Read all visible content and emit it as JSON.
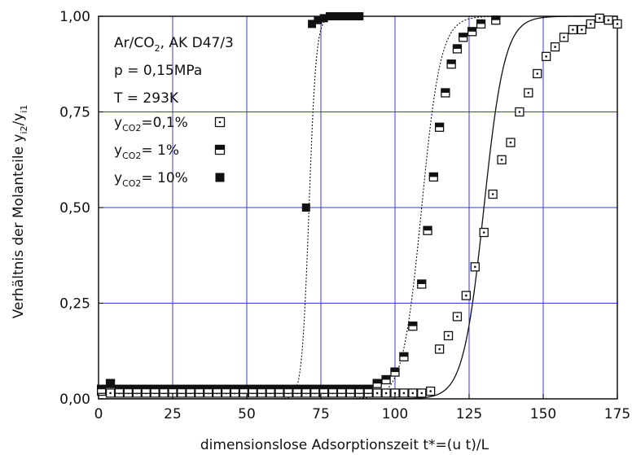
{
  "chart_data": {
    "type": "scatter",
    "xlabel": "dimensionslose Adsorptionszeit t*=(u t)/L",
    "ylabel": "Verhältnis der Molanteile y",
    "ylabel_sub1": "i2",
    "ylabel_mid": "/y",
    "ylabel_sub2": "i1",
    "xlim": [
      0,
      175
    ],
    "ylim": [
      0,
      1
    ],
    "xticks": [
      0,
      25,
      50,
      75,
      100,
      125,
      150,
      175
    ],
    "xtick_labels": [
      "0",
      "25",
      "50",
      "75",
      "100",
      "125",
      "150",
      "175"
    ],
    "yticks": [
      0,
      0.25,
      0.5,
      0.75,
      1.0
    ],
    "ytick_labels": [
      "0,00",
      "0,25",
      "0,50",
      "0,75",
      "1,00"
    ],
    "grid": true,
    "grid_color": "#3a3adf",
    "info": {
      "line1_a": "Ar/CO",
      "line1_sub": "2",
      "line1_b": ", AK D47/3",
      "line2": "p = 0,15MPa",
      "line3": "T = 293K"
    },
    "legend": [
      {
        "prefix": "y",
        "sub": "CO2",
        "text": "=0,1%",
        "marker": "dotted-square"
      },
      {
        "prefix": "y",
        "sub": "CO2",
        "text": "=   1%",
        "marker": "half-filled-square"
      },
      {
        "prefix": "y",
        "sub": "CO2",
        "text": "= 10%",
        "marker": "filled-square"
      }
    ],
    "series": [
      {
        "marker": "dotted-square",
        "x": [
          1,
          4,
          7,
          10,
          13,
          16,
          19,
          22,
          25,
          28,
          31,
          34,
          37,
          40,
          43,
          46,
          49,
          52,
          55,
          58,
          61,
          64,
          67,
          70,
          73,
          76,
          79,
          82,
          85,
          88,
          91,
          94,
          97,
          100,
          103,
          106,
          109,
          112,
          115,
          118,
          121,
          124,
          127,
          130,
          133,
          136,
          139,
          142,
          145,
          148,
          151,
          154,
          157,
          160,
          163,
          166,
          169,
          172,
          175
        ],
        "y": [
          0.02,
          0.015,
          0.015,
          0.015,
          0.015,
          0.015,
          0.015,
          0.015,
          0.015,
          0.015,
          0.015,
          0.015,
          0.015,
          0.015,
          0.015,
          0.015,
          0.015,
          0.015,
          0.015,
          0.015,
          0.015,
          0.015,
          0.015,
          0.015,
          0.015,
          0.015,
          0.015,
          0.015,
          0.015,
          0.015,
          0.015,
          0.015,
          0.015,
          0.015,
          0.015,
          0.015,
          0.015,
          0.02,
          0.13,
          0.165,
          0.215,
          0.27,
          0.345,
          0.435,
          0.535,
          0.625,
          0.67,
          0.75,
          0.8,
          0.85,
          0.895,
          0.92,
          0.945,
          0.965,
          0.965,
          0.98,
          0.995,
          0.99,
          0.98
        ]
      },
      {
        "marker": "half-filled-square",
        "x": [
          1,
          4,
          7,
          10,
          13,
          16,
          19,
          22,
          25,
          28,
          31,
          34,
          37,
          40,
          43,
          46,
          49,
          52,
          55,
          58,
          61,
          64,
          67,
          70,
          73,
          76,
          79,
          82,
          85,
          88,
          91,
          94,
          97,
          100,
          103,
          106,
          109,
          111,
          113,
          115,
          117,
          119,
          121,
          123,
          126,
          129,
          134
        ],
        "y": [
          0.025,
          0.04,
          0.025,
          0.025,
          0.025,
          0.025,
          0.025,
          0.025,
          0.025,
          0.025,
          0.025,
          0.025,
          0.025,
          0.025,
          0.025,
          0.025,
          0.025,
          0.025,
          0.025,
          0.025,
          0.025,
          0.025,
          0.025,
          0.025,
          0.025,
          0.025,
          0.025,
          0.025,
          0.025,
          0.025,
          0.025,
          0.04,
          0.05,
          0.07,
          0.11,
          0.19,
          0.3,
          0.44,
          0.58,
          0.71,
          0.8,
          0.875,
          0.915,
          0.945,
          0.96,
          0.98,
          0.99
        ]
      },
      {
        "marker": "filled-square",
        "x": [
          4,
          70,
          72,
          74,
          76,
          78,
          80,
          82,
          84,
          86,
          88
        ],
        "y": [
          0.04,
          0.5,
          0.98,
          0.99,
          0.995,
          1.0,
          1.0,
          1.0,
          1.0,
          1.0,
          1.0
        ]
      }
    ],
    "curves": [
      {
        "style": "dotted",
        "center": 71,
        "width": 1.2
      },
      {
        "style": "dotted",
        "center": 109,
        "width": 3.2
      },
      {
        "style": "solid",
        "center": 130,
        "width": 3.5
      }
    ]
  }
}
